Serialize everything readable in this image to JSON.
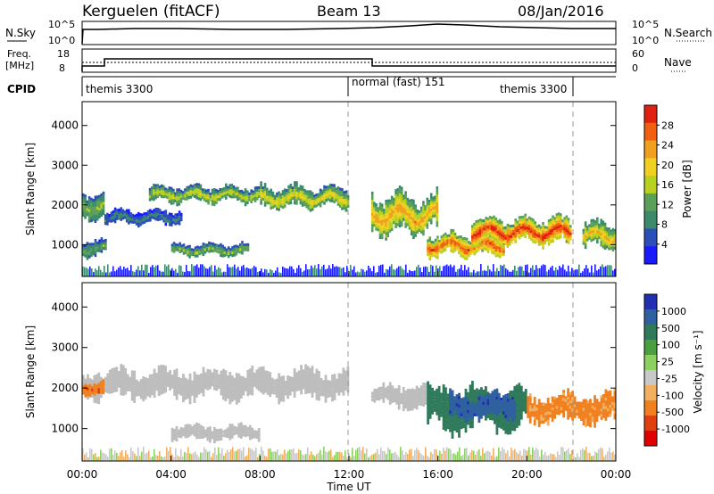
{
  "header": {
    "title": "Kerguelen (fitACF)",
    "beam": "Beam 13",
    "date": "08/Jan/2016"
  },
  "noise_panel": {
    "left_label": "N.Sky",
    "right_label": "N.Search",
    "left_ticks": [
      "10^5",
      "10^0"
    ],
    "right_ticks": [
      "10^5",
      "10^0"
    ]
  },
  "freq_panel": {
    "left_label_1": "Freq.",
    "left_label_2": "[MHz]",
    "right_label": "Nave",
    "left_ticks": [
      "18",
      "8"
    ],
    "right_ticks": [
      "60",
      "0"
    ]
  },
  "cpid_panel": {
    "label": "CPID",
    "modes": [
      {
        "name": "themis 3300",
        "start_hour": 0
      },
      {
        "name": "normal (fast) 151",
        "start_hour": 12
      },
      {
        "name": "themis 3300",
        "start_hour": 22
      }
    ]
  },
  "x_axis": {
    "label": "Time UT",
    "ticks": [
      "00:00",
      "04:00",
      "08:00",
      "12:00",
      "16:00",
      "20:00",
      "00:00"
    ],
    "range_hours": [
      0,
      24
    ]
  },
  "power_panel": {
    "ylabel": "Slant Range [km]",
    "yticks": [
      "1000",
      "2000",
      "3000",
      "4000"
    ],
    "ylim": [
      200,
      4600
    ],
    "colorbar_label": "Power [dB]",
    "colorbar_ticks": [
      "4",
      "8",
      "12",
      "16",
      "20",
      "24",
      "28"
    ],
    "colors": [
      "#1a1aff",
      "#2c4eb8",
      "#3c8a6c",
      "#5aa05a",
      "#b8d020",
      "#f0d020",
      "#f0a020",
      "#f06010",
      "#e02010"
    ]
  },
  "velocity_panel": {
    "ylabel": "Slant Range [km]",
    "yticks": [
      "1000",
      "2000",
      "3000",
      "4000"
    ],
    "ylim": [
      200,
      4600
    ],
    "colorbar_label": "Velocity [m s⁻¹]",
    "colorbar_ticks": [
      "1000",
      "500",
      "100",
      "25",
      "-25",
      "-100",
      "-500",
      "-1000"
    ],
    "colors": [
      "#2030b0",
      "#2f60a0",
      "#2f7a5a",
      "#4aa040",
      "#8cd060",
      "#c8c8c8",
      "#f0b060",
      "#f08020",
      "#e04010",
      "#e00000"
    ],
    "ground_scatter_color": "#bdbdbd"
  },
  "chart_data": {
    "type": "heatmap",
    "x_unit": "hours UT",
    "y_unit": "slant range km",
    "power_regions": [
      {
        "t": [
          0.0,
          1.0
        ],
        "r": [
          1650,
          2350
        ],
        "level": 14
      },
      {
        "t": [
          0.0,
          1.1
        ],
        "r": [
          700,
          1150
        ],
        "level": 12
      },
      {
        "t": [
          1.0,
          4.5
        ],
        "r": [
          1500,
          1900
        ],
        "level": 8
      },
      {
        "t": [
          3.0,
          8.0
        ],
        "r": [
          2050,
          2500
        ],
        "level": 16
      },
      {
        "t": [
          4.0,
          7.5
        ],
        "r": [
          700,
          1050
        ],
        "level": 14
      },
      {
        "t": [
          8.0,
          12.0
        ],
        "r": [
          1900,
          2500
        ],
        "level": 18
      },
      {
        "t": [
          13.0,
          16.0
        ],
        "r": [
          1250,
          2300
        ],
        "level": 22
      },
      {
        "t": [
          15.5,
          19.0
        ],
        "r": [
          700,
          1300
        ],
        "level": 26
      },
      {
        "t": [
          17.5,
          22.0
        ],
        "r": [
          1000,
          1700
        ],
        "level": 28
      },
      {
        "t": [
          22.5,
          24.0
        ],
        "r": [
          900,
          1600
        ],
        "level": 20
      }
    ],
    "velocity_regions": [
      {
        "t": [
          0.0,
          12.0
        ],
        "r": [
          1700,
          2500
        ],
        "velocity": 0,
        "ground_scatter": true
      },
      {
        "t": [
          0.0,
          1.0
        ],
        "r": [
          1800,
          2200
        ],
        "velocity": -300
      },
      {
        "t": [
          4.0,
          8.0
        ],
        "r": [
          700,
          1100
        ],
        "velocity": 0,
        "ground_scatter": true
      },
      {
        "t": [
          13.0,
          15.5
        ],
        "r": [
          1500,
          2100
        ],
        "velocity": 0,
        "ground_scatter": true
      },
      {
        "t": [
          15.5,
          20.0
        ],
        "r": [
          900,
          2100
        ],
        "velocity": 120
      },
      {
        "t": [
          16.5,
          19.5
        ],
        "r": [
          1200,
          1900
        ],
        "velocity": 600
      },
      {
        "t": [
          20.0,
          24.0
        ],
        "r": [
          1100,
          1900
        ],
        "velocity": -200
      }
    ]
  }
}
